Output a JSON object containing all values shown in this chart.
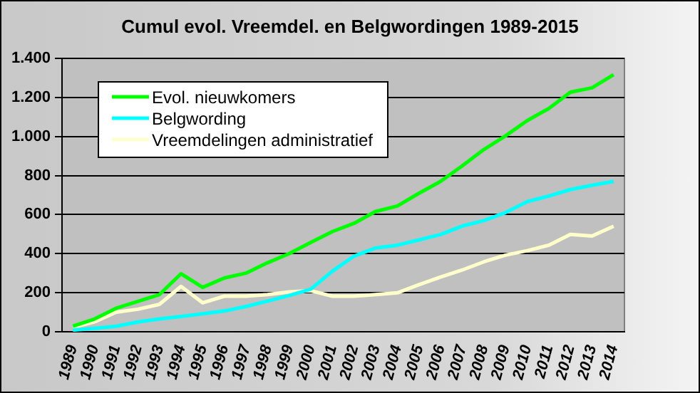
{
  "chart_data": {
    "type": "line",
    "title": "Cumul evol. Vreemdel. en Belgwordingen 1989-2015",
    "categories": [
      "1989",
      "1990",
      "1991",
      "1992",
      "1993",
      "1994",
      "1995",
      "1996",
      "1997",
      "1998",
      "1999",
      "2000",
      "2001",
      "2002",
      "2003",
      "2004",
      "2005",
      "2006",
      "2007",
      "2008",
      "2009",
      "2010",
      "2011",
      "2012",
      "2013",
      "2014"
    ],
    "series": [
      {
        "name": "Evol. nieuwkomers",
        "color": "#00ff00",
        "values": [
          28,
          65,
          120,
          155,
          190,
          297,
          227,
          275,
          300,
          353,
          400,
          457,
          513,
          555,
          616,
          644,
          709,
          770,
          849,
          933,
          1003,
          1081,
          1143,
          1227,
          1249,
          1317
        ]
      },
      {
        "name": "Belgwording",
        "color": "#00ffff",
        "values": [
          8,
          17,
          28,
          50,
          65,
          78,
          92,
          106,
          129,
          157,
          185,
          218,
          310,
          387,
          429,
          443,
          470,
          498,
          541,
          569,
          610,
          666,
          695,
          728,
          750,
          770
        ]
      },
      {
        "name": "Vreemdelingen administratief",
        "color": "#ffffcc",
        "values": [
          22,
          50,
          100,
          115,
          140,
          232,
          148,
          182,
          182,
          190,
          204,
          210,
          182,
          182,
          190,
          199,
          241,
          280,
          316,
          358,
          392,
          415,
          443,
          498,
          490,
          540
        ]
      }
    ],
    "ylim": [
      0,
      1400
    ],
    "yticks": [
      0,
      {
        "value": 200,
        "label": "200"
      },
      {
        "value": 400,
        "label": "400"
      },
      {
        "value": 600,
        "label": "600"
      },
      {
        "value": 800,
        "label": "800"
      },
      {
        "value": 1000,
        "label": "1.000"
      },
      {
        "value": 1200,
        "label": "1.200"
      },
      {
        "value": 1400,
        "label": "1.400"
      }
    ],
    "grid": "y",
    "legend": "top left",
    "marker": "none",
    "line_style": "solid"
  }
}
